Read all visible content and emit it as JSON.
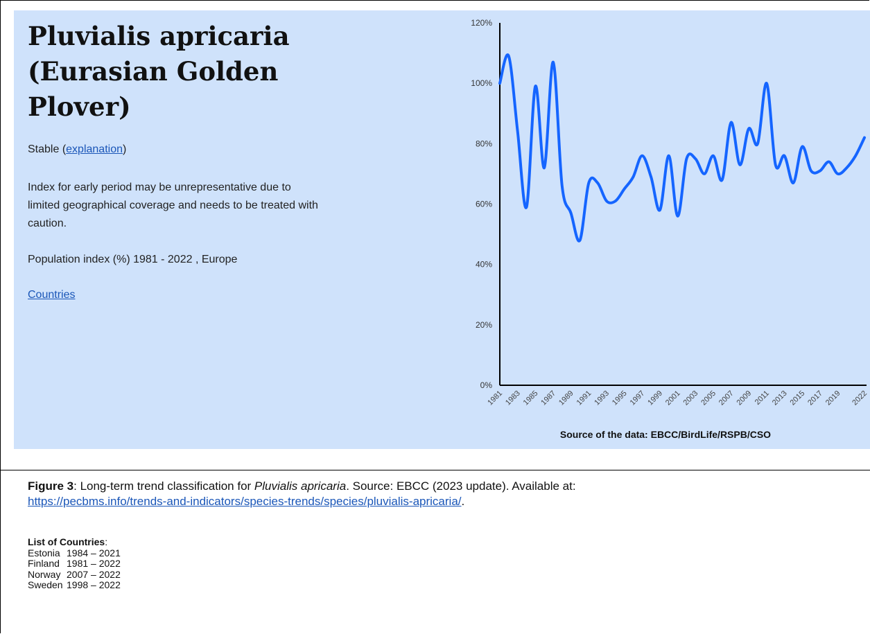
{
  "title": "Pluvialis apricaria (Eurasian Golden Plover)",
  "status": {
    "prefix": "Stable (",
    "link": "explanation",
    "suffix": ")"
  },
  "note": "Index for early period may be unrepresentative due to limited geographical coverage and needs to be treated with caution.",
  "population_index_label": "Population index (%) 1981 - 2022 , Europe",
  "countries_link": "Countries",
  "chart_data": {
    "type": "line",
    "y_tick_labels": [
      "0%",
      "20%",
      "40%",
      "60%",
      "80%",
      "100%",
      "120%"
    ],
    "ylim": [
      0,
      120
    ],
    "xlim": [
      1981,
      2022
    ],
    "x_tick_labels": [
      "1981",
      "1983",
      "1985",
      "1987",
      "1989",
      "1991",
      "1993",
      "1995",
      "1997",
      "1999",
      "2001",
      "2003",
      "2005",
      "2007",
      "2009",
      "2011",
      "2013",
      "2015",
      "2017",
      "2019",
      "2022"
    ],
    "source": "Source of the data: EBCC/BirdLife/RSPB/CSO",
    "line_color": "#1565ff",
    "grid": false,
    "series": [
      {
        "x": [
          1981,
          1982,
          1983,
          1984,
          1985,
          1986,
          1987,
          1988,
          1989,
          1990,
          1991,
          1992,
          1993,
          1994,
          1995,
          1996,
          1997,
          1998,
          1999,
          2000,
          2001,
          2002,
          2003,
          2004,
          2005,
          2006,
          2007,
          2008,
          2009,
          2010,
          2011,
          2012,
          2013,
          2014,
          2015,
          2016,
          2017,
          2018,
          2019,
          2020,
          2021,
          2022
        ],
        "values": [
          100,
          109,
          84,
          59,
          99,
          72,
          107,
          66,
          57,
          48,
          67,
          67,
          61,
          61,
          65,
          69,
          76,
          69,
          58,
          76,
          56,
          75,
          75,
          70,
          76,
          68,
          87,
          73,
          85,
          80,
          100,
          73,
          76,
          67,
          79,
          71,
          71,
          74,
          70,
          72,
          76,
          82
        ]
      }
    ]
  },
  "caption": {
    "label": "Figure 3",
    "text1": ": Long-term trend classification for ",
    "species": "Pluvialis apricaria",
    "text2": ". Source: EBCC (2023 update). Available at:",
    "url": "https://pecbms.info/trends-and-indicators/species-trends/species/pluvialis-apricaria/",
    "end": "."
  },
  "countries_list": {
    "title": "List of Countries",
    "colon": ":",
    "items": [
      {
        "country": "Estonia",
        "period": "1984 – 2021"
      },
      {
        "country": "Finland",
        "period": "1981 – 2022"
      },
      {
        "country": "Norway",
        "period": "2007 – 2022"
      },
      {
        "country": "Sweden",
        "period": "1998 – 2022"
      }
    ]
  }
}
